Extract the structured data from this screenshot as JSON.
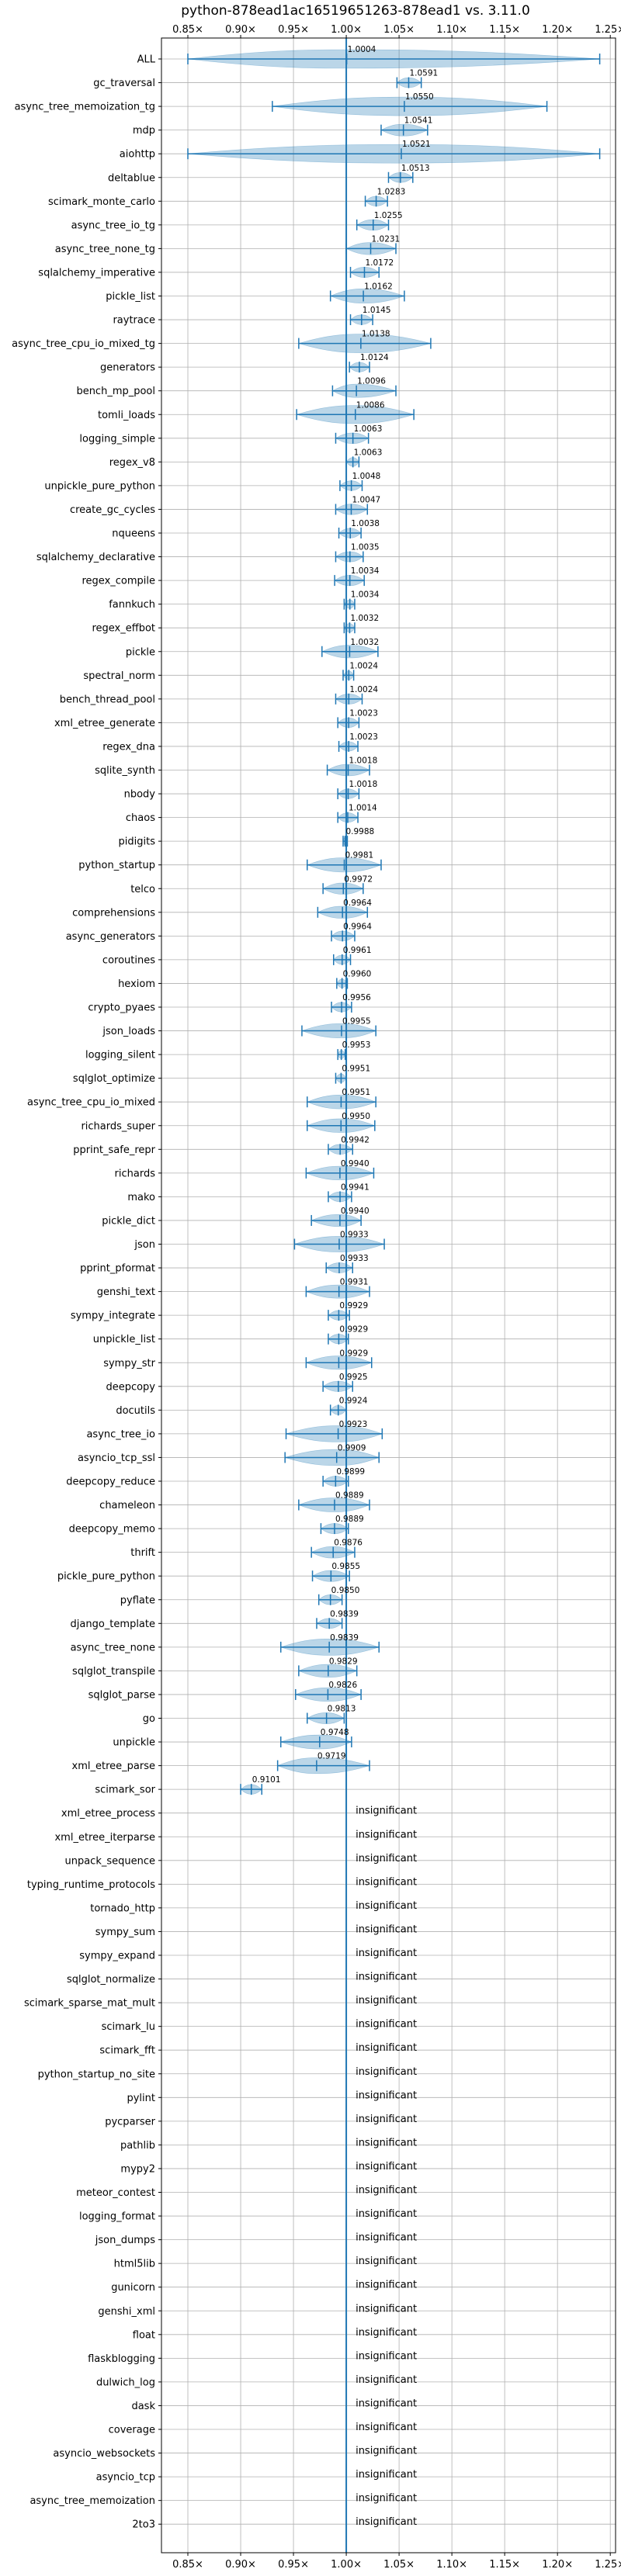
{
  "chart_data": {
    "type": "violin",
    "title": "python-878ead1ac16519651263-878ead1 vs. 3.11.0",
    "xlim": [
      0.825,
      1.255
    ],
    "xticks": [
      0.85,
      0.9,
      0.95,
      1.0,
      1.05,
      1.1,
      1.15,
      1.2,
      1.25
    ],
    "xtick_labels": [
      "0.85×",
      "0.90×",
      "0.95×",
      "1.00×",
      "1.05×",
      "1.10×",
      "1.15×",
      "1.20×",
      "1.25×"
    ],
    "grid": true,
    "reference_line": 1.0,
    "colors": {
      "series": "#1f77b4",
      "grid": "#b0b0b0"
    },
    "insignificant_text": "insignificant",
    "benchmarks": [
      {
        "name": "ALL",
        "mean": 1.0004,
        "min": 0.85,
        "max": 1.24,
        "label": "1.0004"
      },
      {
        "name": "gc_traversal",
        "mean": 1.0591,
        "min": 1.048,
        "max": 1.071,
        "label": "1.0591"
      },
      {
        "name": "async_tree_memoization_tg",
        "mean": 1.055,
        "min": 0.93,
        "max": 1.19,
        "label": "1.0550"
      },
      {
        "name": "mdp",
        "mean": 1.0541,
        "min": 1.033,
        "max": 1.077,
        "label": "1.0541"
      },
      {
        "name": "aiohttp",
        "mean": 1.0521,
        "min": 0.85,
        "max": 1.24,
        "label": "1.0521"
      },
      {
        "name": "deltablue",
        "mean": 1.0513,
        "min": 1.04,
        "max": 1.063,
        "label": "1.0513"
      },
      {
        "name": "scimark_monte_carlo",
        "mean": 1.0283,
        "min": 1.018,
        "max": 1.039,
        "label": "1.0283"
      },
      {
        "name": "async_tree_io_tg",
        "mean": 1.0255,
        "min": 1.01,
        "max": 1.04,
        "label": "1.0255"
      },
      {
        "name": "async_tree_none_tg",
        "mean": 1.0231,
        "min": 1.0,
        "max": 1.047,
        "label": "1.0231"
      },
      {
        "name": "sqlalchemy_imperative",
        "mean": 1.0172,
        "min": 1.004,
        "max": 1.031,
        "label": "1.0172"
      },
      {
        "name": "pickle_list",
        "mean": 1.0162,
        "min": 0.985,
        "max": 1.055,
        "label": "1.0162"
      },
      {
        "name": "raytrace",
        "mean": 1.0145,
        "min": 1.004,
        "max": 1.025,
        "label": "1.0145"
      },
      {
        "name": "async_tree_cpu_io_mixed_tg",
        "mean": 1.0138,
        "min": 0.955,
        "max": 1.08,
        "label": "1.0138"
      },
      {
        "name": "generators",
        "mean": 1.0124,
        "min": 1.003,
        "max": 1.022,
        "label": "1.0124"
      },
      {
        "name": "bench_mp_pool",
        "mean": 1.0096,
        "min": 0.987,
        "max": 1.047,
        "label": "1.0096"
      },
      {
        "name": "tomli_loads",
        "mean": 1.0086,
        "min": 0.953,
        "max": 1.064,
        "label": "1.0086"
      },
      {
        "name": "logging_simple",
        "mean": 1.0063,
        "min": 0.99,
        "max": 1.021,
        "label": "1.0063"
      },
      {
        "name": "regex_v8",
        "mean": 1.0063,
        "min": 1.0,
        "max": 1.012,
        "label": "1.0063"
      },
      {
        "name": "unpickle_pure_python",
        "mean": 1.0048,
        "min": 0.994,
        "max": 1.015,
        "label": "1.0048"
      },
      {
        "name": "create_gc_cycles",
        "mean": 1.0047,
        "min": 0.99,
        "max": 1.02,
        "label": "1.0047"
      },
      {
        "name": "nqueens",
        "mean": 1.0038,
        "min": 0.993,
        "max": 1.014,
        "label": "1.0038"
      },
      {
        "name": "sqlalchemy_declarative",
        "mean": 1.0035,
        "min": 0.99,
        "max": 1.016,
        "label": "1.0035"
      },
      {
        "name": "regex_compile",
        "mean": 1.0034,
        "min": 0.989,
        "max": 1.017,
        "label": "1.0034"
      },
      {
        "name": "fannkuch",
        "mean": 1.0034,
        "min": 0.998,
        "max": 1.008,
        "label": "1.0034"
      },
      {
        "name": "regex_effbot",
        "mean": 1.0032,
        "min": 0.998,
        "max": 1.008,
        "label": "1.0032"
      },
      {
        "name": "pickle",
        "mean": 1.0032,
        "min": 0.977,
        "max": 1.03,
        "label": "1.0032"
      },
      {
        "name": "spectral_norm",
        "mean": 1.0024,
        "min": 0.997,
        "max": 1.007,
        "label": "1.0024"
      },
      {
        "name": "bench_thread_pool",
        "mean": 1.0024,
        "min": 0.99,
        "max": 1.015,
        "label": "1.0024"
      },
      {
        "name": "xml_etree_generate",
        "mean": 1.0023,
        "min": 0.992,
        "max": 1.012,
        "label": "1.0023"
      },
      {
        "name": "regex_dna",
        "mean": 1.0023,
        "min": 0.993,
        "max": 1.011,
        "label": "1.0023"
      },
      {
        "name": "sqlite_synth",
        "mean": 1.0018,
        "min": 0.982,
        "max": 1.022,
        "label": "1.0018"
      },
      {
        "name": "nbody",
        "mean": 1.0018,
        "min": 0.992,
        "max": 1.012,
        "label": "1.0018"
      },
      {
        "name": "chaos",
        "mean": 1.0014,
        "min": 0.992,
        "max": 1.011,
        "label": "1.0014"
      },
      {
        "name": "pidigits",
        "mean": 0.9988,
        "min": 0.997,
        "max": 1.001,
        "label": "0.9988"
      },
      {
        "name": "python_startup",
        "mean": 0.9981,
        "min": 0.963,
        "max": 1.033,
        "label": "0.9981"
      },
      {
        "name": "telco",
        "mean": 0.9972,
        "min": 0.978,
        "max": 1.016,
        "label": "0.9972"
      },
      {
        "name": "comprehensions",
        "mean": 0.9964,
        "min": 0.973,
        "max": 1.02,
        "label": "0.9964"
      },
      {
        "name": "async_generators",
        "mean": 0.9964,
        "min": 0.986,
        "max": 1.008,
        "label": "0.9964"
      },
      {
        "name": "coroutines",
        "mean": 0.9961,
        "min": 0.988,
        "max": 1.004,
        "label": "0.9961"
      },
      {
        "name": "hexiom",
        "mean": 0.996,
        "min": 0.991,
        "max": 1.001,
        "label": "0.9960"
      },
      {
        "name": "crypto_pyaes",
        "mean": 0.9956,
        "min": 0.986,
        "max": 1.005,
        "label": "0.9956"
      },
      {
        "name": "json_loads",
        "mean": 0.9955,
        "min": 0.958,
        "max": 1.028,
        "label": "0.9955"
      },
      {
        "name": "logging_silent",
        "mean": 0.9953,
        "min": 0.992,
        "max": 0.999,
        "label": "0.9953"
      },
      {
        "name": "sqlglot_optimize",
        "mean": 0.9951,
        "min": 0.99,
        "max": 1.0,
        "label": "0.9951"
      },
      {
        "name": "async_tree_cpu_io_mixed",
        "mean": 0.9951,
        "min": 0.963,
        "max": 1.028,
        "label": "0.9951"
      },
      {
        "name": "richards_super",
        "mean": 0.995,
        "min": 0.963,
        "max": 1.027,
        "label": "0.9950"
      },
      {
        "name": "pprint_safe_repr",
        "mean": 0.9942,
        "min": 0.983,
        "max": 1.006,
        "label": "0.9942"
      },
      {
        "name": "richards",
        "mean": 0.994,
        "min": 0.962,
        "max": 1.026,
        "label": "0.9940"
      },
      {
        "name": "mako",
        "mean": 0.9941,
        "min": 0.983,
        "max": 1.005,
        "label": "0.9941"
      },
      {
        "name": "pickle_dict",
        "mean": 0.994,
        "min": 0.967,
        "max": 1.014,
        "label": "0.9940"
      },
      {
        "name": "json",
        "mean": 0.9933,
        "min": 0.951,
        "max": 1.036,
        "label": "0.9933"
      },
      {
        "name": "pprint_pformat",
        "mean": 0.9933,
        "min": 0.981,
        "max": 1.006,
        "label": "0.9933"
      },
      {
        "name": "genshi_text",
        "mean": 0.9931,
        "min": 0.962,
        "max": 1.022,
        "label": "0.9931"
      },
      {
        "name": "sympy_integrate",
        "mean": 0.9929,
        "min": 0.983,
        "max": 1.003,
        "label": "0.9929"
      },
      {
        "name": "unpickle_list",
        "mean": 0.9929,
        "min": 0.983,
        "max": 1.002,
        "label": "0.9929"
      },
      {
        "name": "sympy_str",
        "mean": 0.9929,
        "min": 0.962,
        "max": 1.024,
        "label": "0.9929"
      },
      {
        "name": "deepcopy",
        "mean": 0.9925,
        "min": 0.978,
        "max": 1.006,
        "label": "0.9925"
      },
      {
        "name": "docutils",
        "mean": 0.9924,
        "min": 0.985,
        "max": 1.0,
        "label": "0.9924"
      },
      {
        "name": "async_tree_io",
        "mean": 0.9923,
        "min": 0.943,
        "max": 1.034,
        "label": "0.9923"
      },
      {
        "name": "asyncio_tcp_ssl",
        "mean": 0.9909,
        "min": 0.942,
        "max": 1.031,
        "label": "0.9909"
      },
      {
        "name": "deepcopy_reduce",
        "mean": 0.9899,
        "min": 0.978,
        "max": 1.002,
        "label": "0.9899"
      },
      {
        "name": "chameleon",
        "mean": 0.9889,
        "min": 0.955,
        "max": 1.022,
        "label": "0.9889"
      },
      {
        "name": "deepcopy_memo",
        "mean": 0.9889,
        "min": 0.976,
        "max": 1.002,
        "label": "0.9889"
      },
      {
        "name": "thrift",
        "mean": 0.9876,
        "min": 0.967,
        "max": 1.008,
        "label": "0.9876"
      },
      {
        "name": "pickle_pure_python",
        "mean": 0.9855,
        "min": 0.968,
        "max": 1.003,
        "label": "0.9855"
      },
      {
        "name": "pyflate",
        "mean": 0.985,
        "min": 0.974,
        "max": 0.996,
        "label": "0.9850"
      },
      {
        "name": "django_template",
        "mean": 0.9839,
        "min": 0.972,
        "max": 0.996,
        "label": "0.9839"
      },
      {
        "name": "async_tree_none",
        "mean": 0.9839,
        "min": 0.938,
        "max": 1.031,
        "label": "0.9839"
      },
      {
        "name": "sqlglot_transpile",
        "mean": 0.9829,
        "min": 0.955,
        "max": 1.01,
        "label": "0.9829"
      },
      {
        "name": "sqlglot_parse",
        "mean": 0.9826,
        "min": 0.952,
        "max": 1.014,
        "label": "0.9826"
      },
      {
        "name": "go",
        "mean": 0.9813,
        "min": 0.963,
        "max": 0.998,
        "label": "0.9813"
      },
      {
        "name": "unpickle",
        "mean": 0.9748,
        "min": 0.938,
        "max": 1.005,
        "label": "0.9748"
      },
      {
        "name": "xml_etree_parse",
        "mean": 0.9719,
        "min": 0.935,
        "max": 1.022,
        "label": "0.9719"
      },
      {
        "name": "scimark_sor",
        "mean": 0.9101,
        "min": 0.9,
        "max": 0.92,
        "label": "0.9101"
      },
      {
        "name": "xml_etree_process",
        "insignificant": true
      },
      {
        "name": "xml_etree_iterparse",
        "insignificant": true
      },
      {
        "name": "unpack_sequence",
        "insignificant": true
      },
      {
        "name": "typing_runtime_protocols",
        "insignificant": true
      },
      {
        "name": "tornado_http",
        "insignificant": true
      },
      {
        "name": "sympy_sum",
        "insignificant": true
      },
      {
        "name": "sympy_expand",
        "insignificant": true
      },
      {
        "name": "sqlglot_normalize",
        "insignificant": true
      },
      {
        "name": "scimark_sparse_mat_mult",
        "insignificant": true
      },
      {
        "name": "scimark_lu",
        "insignificant": true
      },
      {
        "name": "scimark_fft",
        "insignificant": true
      },
      {
        "name": "python_startup_no_site",
        "insignificant": true
      },
      {
        "name": "pylint",
        "insignificant": true
      },
      {
        "name": "pycparser",
        "insignificant": true
      },
      {
        "name": "pathlib",
        "insignificant": true
      },
      {
        "name": "mypy2",
        "insignificant": true
      },
      {
        "name": "meteor_contest",
        "insignificant": true
      },
      {
        "name": "logging_format",
        "insignificant": true
      },
      {
        "name": "json_dumps",
        "insignificant": true
      },
      {
        "name": "html5lib",
        "insignificant": true
      },
      {
        "name": "gunicorn",
        "insignificant": true
      },
      {
        "name": "genshi_xml",
        "insignificant": true
      },
      {
        "name": "float",
        "insignificant": true
      },
      {
        "name": "flaskblogging",
        "insignificant": true
      },
      {
        "name": "dulwich_log",
        "insignificant": true
      },
      {
        "name": "dask",
        "insignificant": true
      },
      {
        "name": "coverage",
        "insignificant": true
      },
      {
        "name": "asyncio_websockets",
        "insignificant": true
      },
      {
        "name": "asyncio_tcp",
        "insignificant": true
      },
      {
        "name": "async_tree_memoization",
        "insignificant": true
      },
      {
        "name": "2to3",
        "insignificant": true
      }
    ]
  }
}
